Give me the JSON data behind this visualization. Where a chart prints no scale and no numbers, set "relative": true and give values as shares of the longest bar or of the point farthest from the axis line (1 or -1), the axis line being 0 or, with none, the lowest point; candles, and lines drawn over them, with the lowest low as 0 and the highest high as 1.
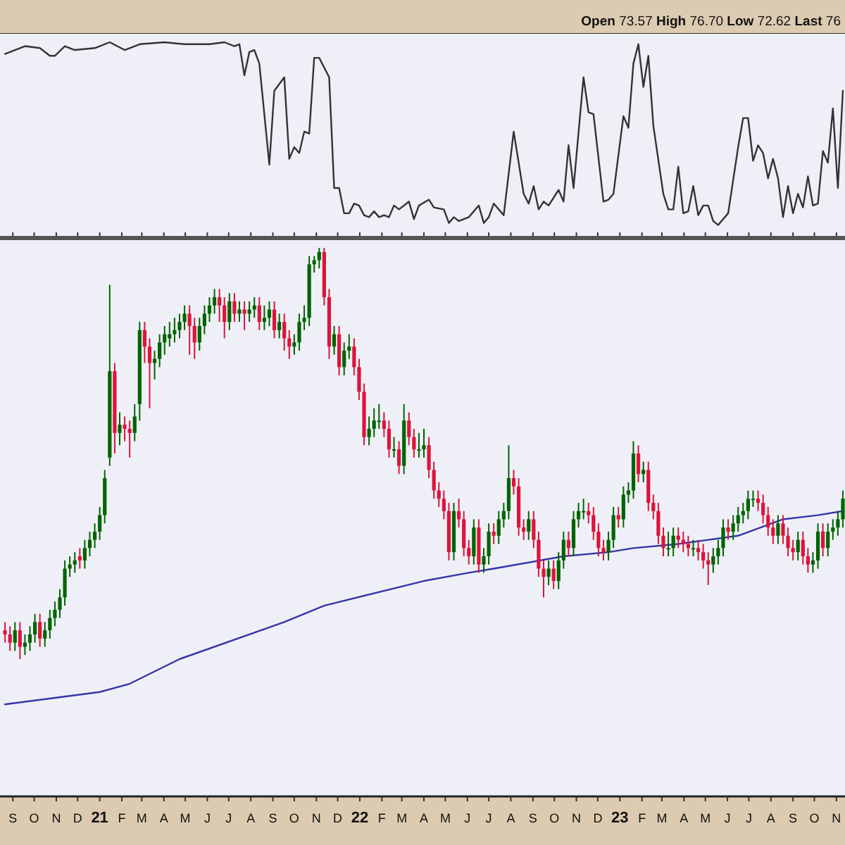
{
  "chart_data": [
    {
      "type": "line",
      "relative": true,
      "tick_labels": false,
      "xticks": [
        {
          "value": "2020-09",
          "label": null
        },
        {
          "value": "2020-10",
          "label": null
        },
        {
          "value": "2020-11",
          "label": null
        },
        {
          "value": "2020-12",
          "label": null
        },
        {
          "value": "2021-01",
          "label": null
        },
        {
          "value": "2021-02",
          "label": null
        },
        {
          "value": "2021-03",
          "label": null
        },
        {
          "value": "2021-04",
          "label": null
        },
        {
          "value": "2021-05",
          "label": null
        },
        {
          "value": "2021-06",
          "label": null
        },
        {
          "value": "2021-07",
          "label": null
        },
        {
          "value": "2021-08",
          "label": null
        },
        {
          "value": "2021-09",
          "label": null
        },
        {
          "value": "2021-10",
          "label": null
        },
        {
          "value": "2021-11",
          "label": null
        },
        {
          "value": "2021-12",
          "label": null
        },
        {
          "value": "2022-01",
          "label": null
        },
        {
          "value": "2022-02",
          "label": null
        },
        {
          "value": "2022-03",
          "label": null
        },
        {
          "value": "2022-04",
          "label": null
        },
        {
          "value": "2022-05",
          "label": null
        },
        {
          "value": "2022-06",
          "label": null
        },
        {
          "value": "2022-07",
          "label": null
        },
        {
          "value": "2022-08",
          "label": null
        },
        {
          "value": "2022-09",
          "label": null
        },
        {
          "value": "2022-10",
          "label": null
        },
        {
          "value": "2022-11",
          "label": null
        },
        {
          "value": "2022-12",
          "label": null
        },
        {
          "value": "2023-01",
          "label": null
        },
        {
          "value": "2023-02",
          "label": null
        },
        {
          "value": "2023-03",
          "label": null
        },
        {
          "value": "2023-04",
          "label": null
        },
        {
          "value": "2023-05",
          "label": null
        },
        {
          "value": "2023-06",
          "label": null
        },
        {
          "value": "2023-07",
          "label": null
        },
        {
          "value": "2023-08",
          "label": null
        },
        {
          "value": "2023-09",
          "label": null
        },
        {
          "value": "2023-10",
          "label": null
        },
        {
          "value": "2023-11",
          "label": null
        }
      ],
      "annotations": [
        "Open 73.57 High 76.70 Low 72.62 Last 76"
      ],
      "xlim": [
        "2020-08-14",
        "2023-11-13"
      ],
      "series": [
        {
          "color": "#333333",
          "x": [
            "2020-08-21",
            "2020-09-04",
            "2020-09-18",
            "2020-10-09",
            "2020-10-23",
            "2020-10-30",
            "2020-11-13",
            "2020-11-27",
            "2020-12-25",
            "2021-01-15",
            "2021-02-05",
            "2021-02-26",
            "2021-04-02",
            "2021-04-30",
            "2021-05-21",
            "2021-06-04",
            "2021-06-25",
            "2021-07-09",
            "2021-07-16",
            "2021-07-23",
            "2021-07-30",
            "2021-08-06",
            "2021-08-13",
            "2021-08-27",
            "2021-09-03",
            "2021-09-17",
            "2021-09-24",
            "2021-10-01",
            "2021-10-08",
            "2021-10-15",
            "2021-10-22",
            "2021-10-29",
            "2021-11-05",
            "2021-11-19",
            "2021-11-26",
            "2021-12-03",
            "2021-12-10",
            "2021-12-17",
            "2021-12-24",
            "2021-12-31",
            "2022-01-07",
            "2022-01-14",
            "2022-01-21",
            "2022-01-28",
            "2022-02-04",
            "2022-02-11",
            "2022-02-18",
            "2022-02-25",
            "2022-03-11",
            "2022-03-18",
            "2022-03-25",
            "2022-04-08",
            "2022-04-15",
            "2022-04-29",
            "2022-05-06",
            "2022-05-13",
            "2022-05-20",
            "2022-06-03",
            "2022-06-17",
            "2022-06-24",
            "2022-07-01",
            "2022-07-08",
            "2022-07-22",
            "2022-08-05",
            "2022-08-12",
            "2022-08-19",
            "2022-08-26",
            "2022-09-02",
            "2022-09-09",
            "2022-09-16",
            "2022-09-23",
            "2022-10-07",
            "2022-10-14",
            "2022-10-21",
            "2022-10-28",
            "2022-11-11",
            "2022-11-18",
            "2022-11-25",
            "2022-12-09",
            "2022-12-16",
            "2022-12-23",
            "2023-01-06",
            "2023-01-13",
            "2023-01-20",
            "2023-01-27",
            "2023-02-03",
            "2023-02-10",
            "2023-02-17",
            "2023-03-03",
            "2023-03-10",
            "2023-03-17",
            "2023-03-24",
            "2023-03-31",
            "2023-04-07",
            "2023-04-14",
            "2023-04-21",
            "2023-04-28",
            "2023-05-05",
            "2023-05-12",
            "2023-05-19",
            "2023-06-02",
            "2023-06-16",
            "2023-06-23",
            "2023-06-30",
            "2023-07-07",
            "2023-07-14",
            "2023-07-21",
            "2023-07-28",
            "2023-08-04",
            "2023-08-11",
            "2023-08-18",
            "2023-08-25",
            "2023-09-01",
            "2023-09-08",
            "2023-09-15",
            "2023-09-22",
            "2023-09-29",
            "2023-10-06",
            "2023-10-13",
            "2023-10-20",
            "2023-10-27",
            "2023-11-03",
            "2023-11-10"
          ],
          "values": [
            0.94,
            0.96,
            0.98,
            0.97,
            0.93,
            0.93,
            0.98,
            0.96,
            0.97,
            1.0,
            0.96,
            0.99,
            1.0,
            0.99,
            0.99,
            0.99,
            1.0,
            0.98,
            0.99,
            0.83,
            0.95,
            0.96,
            0.89,
            0.37,
            0.75,
            0.82,
            0.4,
            0.46,
            0.43,
            0.54,
            0.53,
            0.92,
            0.92,
            0.82,
            0.25,
            0.25,
            0.12,
            0.12,
            0.17,
            0.16,
            0.11,
            0.1,
            0.13,
            0.1,
            0.11,
            0.1,
            0.16,
            0.14,
            0.18,
            0.09,
            0.16,
            0.19,
            0.15,
            0.14,
            0.07,
            0.1,
            0.08,
            0.1,
            0.16,
            0.07,
            0.1,
            0.17,
            0.11,
            0.54,
            0.38,
            0.22,
            0.17,
            0.26,
            0.14,
            0.18,
            0.16,
            0.24,
            0.18,
            0.47,
            0.25,
            0.82,
            0.64,
            0.63,
            0.18,
            0.19,
            0.22,
            0.62,
            0.56,
            0.89,
            0.99,
            0.77,
            0.93,
            0.57,
            0.22,
            0.14,
            0.14,
            0.36,
            0.12,
            0.13,
            0.26,
            0.11,
            0.16,
            0.16,
            0.08,
            0.06,
            0.12,
            0.46,
            0.61,
            0.61,
            0.39,
            0.47,
            0.43,
            0.3,
            0.4,
            0.3,
            0.1,
            0.26,
            0.12,
            0.22,
            0.15,
            0.31,
            0.16,
            0.17,
            0.44,
            0.38,
            0.66,
            0.25,
            0.75
          ]
        }
      ]
    },
    {
      "type": "candlestick",
      "relative": true,
      "colors": [
        "#dc143c",
        "#dc143c",
        "#006400",
        "#dc143c",
        "#006400",
        "#006400",
        "#006400",
        "#dc143c",
        "#006400",
        "#006400",
        "#006400",
        "#006400",
        "#006400",
        "#006400",
        "#006400",
        "#dc143c",
        "#006400",
        "#006400",
        "#006400",
        "#006400",
        "#006400",
        "#006400",
        "#dc143c",
        "#006400",
        "#dc143c",
        "#dc143c",
        "#006400",
        "#006400",
        "#dc143c",
        "#dc143c",
        "#006400",
        "#006400",
        "#006400",
        "#006400",
        "#006400",
        "#006400",
        "#006400",
        "#dc143c",
        "#dc143c",
        "#006400",
        "#006400",
        "#006400",
        "#006400",
        "#dc143c",
        "#dc143c",
        "#006400",
        "#dc143c",
        "#006400",
        "#dc143c",
        "#006400",
        "#006400",
        "#dc143c",
        "#006400",
        "#006400",
        "#dc143c",
        "#006400",
        "#dc143c",
        "#dc143c",
        "#006400",
        "#006400",
        "#006400",
        "#006400",
        "#006400",
        "#006400",
        "#dc143c",
        "#dc143c",
        "#006400",
        "#dc143c",
        "#006400",
        "#006400",
        "#dc143c",
        "#dc143c",
        "#dc143c",
        "#006400",
        "#006400",
        "#006400",
        "#dc143c",
        "#dc143c",
        "#006400",
        "#dc143c",
        "#006400",
        "#dc143c",
        "#dc143c",
        "#006400",
        "#006400",
        "#dc143c",
        "#dc143c",
        "#dc143c",
        "#dc143c",
        "#dc143c",
        "#006400",
        "#dc143c",
        "#dc143c",
        "#dc143c",
        "#006400",
        "#dc143c",
        "#006400",
        "#006400",
        "#dc143c",
        "#006400",
        "#006400",
        "#006400",
        "#dc143c",
        "#dc143c",
        "#dc143c",
        "#006400",
        "#dc143c",
        "#dc143c",
        "#dc143c",
        "#006400",
        "#dc143c",
        "#006400",
        "#006400",
        "#dc143c",
        "#006400",
        "#006400",
        "#006400",
        "#dc143c",
        "#dc143c",
        "#dc143c",
        "#dc143c",
        "#006400",
        "#006400",
        "#dc143c",
        "#006400",
        "#006400",
        "#006400",
        "#dc143c",
        "#006400",
        "#dc143c",
        "#dc143c",
        "#dc143c",
        "#dc143c",
        "#006400",
        "#006400",
        "#dc143c",
        "#dc143c",
        "#dc143c",
        "#006400",
        "#dc143c",
        "#dc143c",
        "#dc143c",
        "#006400",
        "#006400",
        "#006400",
        "#dc143c",
        "#006400",
        "#006400",
        "#006400",
        "#006400",
        "#006400",
        "#dc143c",
        "#dc143c",
        "#dc143c",
        "#dc143c",
        "#006400",
        "#dc143c",
        "#dc143c",
        "#dc143c",
        "#006400",
        "#dc143c",
        "#dc143c",
        "#006400",
        "#006400",
        "#dc143c",
        "#006400",
        "#006400",
        "#006400",
        "#006400"
      ],
      "xlim": [
        "2020-08-14",
        "2023-11-13"
      ],
      "xticks": [
        {
          "value": "2020-09",
          "label": "S"
        },
        {
          "value": "2020-10",
          "label": "O"
        },
        {
          "value": "2020-11",
          "label": "N"
        },
        {
          "value": "2020-12",
          "label": "D"
        },
        {
          "value": "2021-01",
          "label": "21"
        },
        {
          "value": "2021-02",
          "label": "F"
        },
        {
          "value": "2021-03",
          "label": "M"
        },
        {
          "value": "2021-04",
          "label": "A"
        },
        {
          "value": "2021-05",
          "label": "M"
        },
        {
          "value": "2021-06",
          "label": "J"
        },
        {
          "value": "2021-07",
          "label": "J"
        },
        {
          "value": "2021-08",
          "label": "A"
        },
        {
          "value": "2021-09",
          "label": "S"
        },
        {
          "value": "2021-10",
          "label": "O"
        },
        {
          "value": "2021-11",
          "label": "N"
        },
        {
          "value": "2021-12",
          "label": "D"
        },
        {
          "value": "2022-01",
          "label": "22"
        },
        {
          "value": "2022-02",
          "label": "F"
        },
        {
          "value": "2022-03",
          "label": "M"
        },
        {
          "value": "2022-04",
          "label": "A"
        },
        {
          "value": "2022-05",
          "label": "M"
        },
        {
          "value": "2022-06",
          "label": "J"
        },
        {
          "value": "2022-07",
          "label": "J"
        },
        {
          "value": "2022-08",
          "label": "A"
        },
        {
          "value": "2022-09",
          "label": "S"
        },
        {
          "value": "2022-10",
          "label": "O"
        },
        {
          "value": "2022-11",
          "label": "N"
        },
        {
          "value": "2022-12",
          "label": "D"
        },
        {
          "value": "2023-01",
          "label": "23"
        },
        {
          "value": "2023-02",
          "label": "F"
        },
        {
          "value": "2023-03",
          "label": "M"
        },
        {
          "value": "2023-04",
          "label": "A"
        },
        {
          "value": "2023-05",
          "label": "M"
        },
        {
          "value": "2023-06",
          "label": "J"
        },
        {
          "value": "2023-07",
          "label": "J"
        },
        {
          "value": "2023-08",
          "label": "A"
        },
        {
          "value": "2023-09",
          "label": "S"
        },
        {
          "value": "2023-10",
          "label": "O"
        },
        {
          "value": "2023-11",
          "label": "N"
        }
      ],
      "x": [
        "2020-08-21",
        "2020-08-28",
        "2020-09-04",
        "2020-09-11",
        "2020-09-18",
        "2020-09-25",
        "2020-10-02",
        "2020-10-09",
        "2020-10-16",
        "2020-10-23",
        "2020-10-30",
        "2020-11-06",
        "2020-11-13",
        "2020-11-20",
        "2020-11-27",
        "2020-12-04",
        "2020-12-11",
        "2020-12-18",
        "2020-12-25",
        "2021-01-01",
        "2021-01-08",
        "2021-01-15",
        "2021-01-22",
        "2021-01-29",
        "2021-02-05",
        "2021-02-12",
        "2021-02-19",
        "2021-02-26",
        "2021-03-05",
        "2021-03-12",
        "2021-03-19",
        "2021-03-26",
        "2021-04-02",
        "2021-04-09",
        "2021-04-16",
        "2021-04-23",
        "2021-04-30",
        "2021-05-07",
        "2021-05-14",
        "2021-05-21",
        "2021-05-28",
        "2021-06-04",
        "2021-06-11",
        "2021-06-18",
        "2021-06-25",
        "2021-07-02",
        "2021-07-09",
        "2021-07-16",
        "2021-07-23",
        "2021-07-30",
        "2021-08-06",
        "2021-08-13",
        "2021-08-20",
        "2021-08-27",
        "2021-09-03",
        "2021-09-10",
        "2021-09-17",
        "2021-09-24",
        "2021-10-01",
        "2021-10-08",
        "2021-10-15",
        "2021-10-22",
        "2021-10-29",
        "2021-11-05",
        "2021-11-12",
        "2021-11-19",
        "2021-11-26",
        "2021-12-03",
        "2021-12-10",
        "2021-12-17",
        "2021-12-24",
        "2021-12-31",
        "2022-01-07",
        "2022-01-14",
        "2022-01-21",
        "2022-01-28",
        "2022-02-04",
        "2022-02-11",
        "2022-02-18",
        "2022-02-25",
        "2022-03-04",
        "2022-03-11",
        "2022-03-18",
        "2022-03-25",
        "2022-04-01",
        "2022-04-08",
        "2022-04-15",
        "2022-04-22",
        "2022-04-29",
        "2022-05-06",
        "2022-05-13",
        "2022-05-20",
        "2022-05-27",
        "2022-06-03",
        "2022-06-10",
        "2022-06-17",
        "2022-06-24",
        "2022-07-01",
        "2022-07-08",
        "2022-07-15",
        "2022-07-22",
        "2022-07-29",
        "2022-08-05",
        "2022-08-12",
        "2022-08-19",
        "2022-08-26",
        "2022-09-02",
        "2022-09-09",
        "2022-09-16",
        "2022-09-23",
        "2022-09-30",
        "2022-10-07",
        "2022-10-14",
        "2022-10-21",
        "2022-10-28",
        "2022-11-04",
        "2022-11-11",
        "2022-11-18",
        "2022-11-25",
        "2022-12-02",
        "2022-12-09",
        "2022-12-16",
        "2022-12-23",
        "2022-12-30",
        "2023-01-06",
        "2023-01-13",
        "2023-01-20",
        "2023-01-27",
        "2023-02-03",
        "2023-02-10",
        "2023-02-17",
        "2023-02-24",
        "2023-03-03",
        "2023-03-10",
        "2023-03-17",
        "2023-03-24",
        "2023-03-31",
        "2023-04-07",
        "2023-04-14",
        "2023-04-21",
        "2023-04-28",
        "2023-05-05",
        "2023-05-12",
        "2023-05-19",
        "2023-05-26",
        "2023-06-02",
        "2023-06-09",
        "2023-06-16",
        "2023-06-23",
        "2023-06-30",
        "2023-07-07",
        "2023-07-14",
        "2023-07-21",
        "2023-07-28",
        "2023-08-04",
        "2023-08-11",
        "2023-08-18",
        "2023-08-25",
        "2023-09-01",
        "2023-09-08",
        "2023-09-15",
        "2023-09-22",
        "2023-09-29",
        "2023-10-06",
        "2023-10-13",
        "2023-10-20",
        "2023-10-27",
        "2023-11-03",
        "2023-11-10"
      ],
      "ohlc": [
        [
          0.07,
          0.09,
          0.04,
          0.06
        ],
        [
          0.06,
          0.08,
          0.02,
          0.04
        ],
        [
          0.04,
          0.09,
          0.02,
          0.07
        ],
        [
          0.07,
          0.09,
          0.0,
          0.03
        ],
        [
          0.03,
          0.06,
          0.01,
          0.04
        ],
        [
          0.04,
          0.08,
          0.02,
          0.06
        ],
        [
          0.06,
          0.11,
          0.04,
          0.09
        ],
        [
          0.09,
          0.11,
          0.03,
          0.05
        ],
        [
          0.05,
          0.09,
          0.03,
          0.07
        ],
        [
          0.07,
          0.12,
          0.05,
          0.1
        ],
        [
          0.1,
          0.14,
          0.08,
          0.12
        ],
        [
          0.12,
          0.17,
          0.1,
          0.15
        ],
        [
          0.15,
          0.24,
          0.13,
          0.22
        ],
        [
          0.22,
          0.25,
          0.2,
          0.23
        ],
        [
          0.23,
          0.26,
          0.21,
          0.24
        ],
        [
          0.25,
          0.27,
          0.22,
          0.24
        ],
        [
          0.24,
          0.29,
          0.22,
          0.27
        ],
        [
          0.27,
          0.31,
          0.25,
          0.29
        ],
        [
          0.29,
          0.33,
          0.27,
          0.31
        ],
        [
          0.31,
          0.37,
          0.29,
          0.35
        ],
        [
          0.35,
          0.46,
          0.33,
          0.44
        ],
        [
          0.49,
          0.91,
          0.47,
          0.7
        ],
        [
          0.7,
          0.72,
          0.5,
          0.55
        ],
        [
          0.55,
          0.6,
          0.52,
          0.57
        ],
        [
          0.57,
          0.59,
          0.53,
          0.56
        ],
        [
          0.56,
          0.58,
          0.49,
          0.55
        ],
        [
          0.55,
          0.62,
          0.53,
          0.59
        ],
        [
          0.62,
          0.82,
          0.58,
          0.8
        ],
        [
          0.8,
          0.82,
          0.72,
          0.76
        ],
        [
          0.76,
          0.78,
          0.61,
          0.72
        ],
        [
          0.72,
          0.75,
          0.68,
          0.73
        ],
        [
          0.73,
          0.79,
          0.71,
          0.77
        ],
        [
          0.77,
          0.81,
          0.74,
          0.79
        ],
        [
          0.78,
          0.82,
          0.76,
          0.79
        ],
        [
          0.79,
          0.83,
          0.77,
          0.8
        ],
        [
          0.8,
          0.84,
          0.78,
          0.82
        ],
        [
          0.82,
          0.86,
          0.8,
          0.84
        ],
        [
          0.84,
          0.86,
          0.74,
          0.81
        ],
        [
          0.81,
          0.83,
          0.73,
          0.77
        ],
        [
          0.77,
          0.83,
          0.75,
          0.81
        ],
        [
          0.81,
          0.86,
          0.79,
          0.84
        ],
        [
          0.84,
          0.88,
          0.82,
          0.86
        ],
        [
          0.86,
          0.9,
          0.84,
          0.88
        ],
        [
          0.88,
          0.9,
          0.82,
          0.86
        ],
        [
          0.86,
          0.88,
          0.78,
          0.82
        ],
        [
          0.82,
          0.89,
          0.8,
          0.87
        ],
        [
          0.87,
          0.89,
          0.82,
          0.84
        ],
        [
          0.84,
          0.87,
          0.82,
          0.85
        ],
        [
          0.85,
          0.87,
          0.8,
          0.84
        ],
        [
          0.84,
          0.87,
          0.82,
          0.85
        ],
        [
          0.85,
          0.88,
          0.83,
          0.86
        ],
        [
          0.86,
          0.88,
          0.8,
          0.82
        ],
        [
          0.82,
          0.86,
          0.8,
          0.83
        ],
        [
          0.83,
          0.87,
          0.81,
          0.85
        ],
        [
          0.85,
          0.87,
          0.78,
          0.8
        ],
        [
          0.8,
          0.84,
          0.78,
          0.82
        ],
        [
          0.82,
          0.84,
          0.75,
          0.78
        ],
        [
          0.78,
          0.8,
          0.73,
          0.76
        ],
        [
          0.76,
          0.79,
          0.74,
          0.77
        ],
        [
          0.77,
          0.84,
          0.75,
          0.82
        ],
        [
          0.82,
          0.86,
          0.8,
          0.83
        ],
        [
          0.83,
          0.98,
          0.81,
          0.96
        ],
        [
          0.96,
          0.98,
          0.94,
          0.97
        ],
        [
          0.97,
          1.0,
          0.95,
          0.99
        ],
        [
          0.99,
          1.0,
          0.86,
          0.88
        ],
        [
          0.88,
          0.9,
          0.73,
          0.76
        ],
        [
          0.76,
          0.81,
          0.74,
          0.79
        ],
        [
          0.79,
          0.81,
          0.69,
          0.71
        ],
        [
          0.71,
          0.77,
          0.69,
          0.75
        ],
        [
          0.75,
          0.79,
          0.73,
          0.76
        ],
        [
          0.76,
          0.78,
          0.69,
          0.71
        ],
        [
          0.71,
          0.73,
          0.63,
          0.65
        ],
        [
          0.65,
          0.67,
          0.52,
          0.54
        ],
        [
          0.54,
          0.59,
          0.52,
          0.56
        ],
        [
          0.56,
          0.61,
          0.54,
          0.58
        ],
        [
          0.58,
          0.62,
          0.56,
          0.58
        ],
        [
          0.58,
          0.6,
          0.54,
          0.56
        ],
        [
          0.56,
          0.58,
          0.49,
          0.51
        ],
        [
          0.51,
          0.54,
          0.49,
          0.51
        ],
        [
          0.51,
          0.53,
          0.45,
          0.47
        ],
        [
          0.47,
          0.62,
          0.45,
          0.58
        ],
        [
          0.58,
          0.6,
          0.52,
          0.54
        ],
        [
          0.54,
          0.56,
          0.49,
          0.51
        ],
        [
          0.51,
          0.55,
          0.49,
          0.51
        ],
        [
          0.51,
          0.56,
          0.49,
          0.52
        ],
        [
          0.52,
          0.54,
          0.44,
          0.46
        ],
        [
          0.46,
          0.48,
          0.39,
          0.41
        ],
        [
          0.41,
          0.43,
          0.37,
          0.39
        ],
        [
          0.39,
          0.41,
          0.34,
          0.36
        ],
        [
          0.36,
          0.38,
          0.24,
          0.26
        ],
        [
          0.26,
          0.38,
          0.24,
          0.36
        ],
        [
          0.36,
          0.39,
          0.32,
          0.34
        ],
        [
          0.34,
          0.36,
          0.25,
          0.27
        ],
        [
          0.27,
          0.29,
          0.23,
          0.25
        ],
        [
          0.25,
          0.34,
          0.23,
          0.32
        ],
        [
          0.32,
          0.34,
          0.21,
          0.23
        ],
        [
          0.23,
          0.27,
          0.21,
          0.25
        ],
        [
          0.25,
          0.33,
          0.23,
          0.31
        ],
        [
          0.31,
          0.33,
          0.28,
          0.3
        ],
        [
          0.3,
          0.36,
          0.28,
          0.34
        ],
        [
          0.34,
          0.38,
          0.32,
          0.36
        ],
        [
          0.36,
          0.52,
          0.34,
          0.44
        ],
        [
          0.44,
          0.46,
          0.4,
          0.42
        ],
        [
          0.42,
          0.44,
          0.3,
          0.32
        ],
        [
          0.32,
          0.34,
          0.29,
          0.31
        ],
        [
          0.31,
          0.36,
          0.29,
          0.34
        ],
        [
          0.34,
          0.36,
          0.27,
          0.29
        ],
        [
          0.29,
          0.31,
          0.2,
          0.22
        ],
        [
          0.22,
          0.24,
          0.15,
          0.2
        ],
        [
          0.2,
          0.24,
          0.18,
          0.22
        ],
        [
          0.22,
          0.24,
          0.17,
          0.19
        ],
        [
          0.19,
          0.26,
          0.17,
          0.24
        ],
        [
          0.24,
          0.31,
          0.22,
          0.29
        ],
        [
          0.29,
          0.31,
          0.25,
          0.27
        ],
        [
          0.27,
          0.36,
          0.25,
          0.34
        ],
        [
          0.34,
          0.38,
          0.32,
          0.36
        ],
        [
          0.36,
          0.39,
          0.34,
          0.36
        ],
        [
          0.36,
          0.38,
          0.33,
          0.35
        ],
        [
          0.35,
          0.37,
          0.29,
          0.31
        ],
        [
          0.31,
          0.33,
          0.25,
          0.27
        ],
        [
          0.27,
          0.29,
          0.24,
          0.26
        ],
        [
          0.26,
          0.31,
          0.24,
          0.29
        ],
        [
          0.29,
          0.37,
          0.27,
          0.35
        ],
        [
          0.35,
          0.37,
          0.32,
          0.34
        ],
        [
          0.34,
          0.42,
          0.32,
          0.4
        ],
        [
          0.4,
          0.43,
          0.38,
          0.41
        ],
        [
          0.41,
          0.53,
          0.39,
          0.5
        ],
        [
          0.5,
          0.52,
          0.43,
          0.45
        ],
        [
          0.45,
          0.48,
          0.43,
          0.46
        ],
        [
          0.46,
          0.48,
          0.36,
          0.38
        ],
        [
          0.38,
          0.4,
          0.34,
          0.36
        ],
        [
          0.36,
          0.38,
          0.28,
          0.3
        ],
        [
          0.3,
          0.32,
          0.25,
          0.27
        ],
        [
          0.27,
          0.31,
          0.25,
          0.27
        ],
        [
          0.27,
          0.32,
          0.25,
          0.3
        ],
        [
          0.3,
          0.32,
          0.27,
          0.29
        ],
        [
          0.29,
          0.31,
          0.26,
          0.28
        ],
        [
          0.28,
          0.3,
          0.25,
          0.27
        ],
        [
          0.27,
          0.29,
          0.25,
          0.27
        ],
        [
          0.27,
          0.29,
          0.24,
          0.26
        ],
        [
          0.26,
          0.28,
          0.22,
          0.24
        ],
        [
          0.24,
          0.26,
          0.18,
          0.23
        ],
        [
          0.23,
          0.27,
          0.21,
          0.25
        ],
        [
          0.25,
          0.29,
          0.23,
          0.27
        ],
        [
          0.27,
          0.34,
          0.25,
          0.32
        ],
        [
          0.32,
          0.34,
          0.29,
          0.31
        ],
        [
          0.31,
          0.35,
          0.29,
          0.33
        ],
        [
          0.33,
          0.37,
          0.31,
          0.35
        ],
        [
          0.35,
          0.38,
          0.33,
          0.36
        ],
        [
          0.36,
          0.41,
          0.34,
          0.39
        ],
        [
          0.39,
          0.41,
          0.37,
          0.39
        ],
        [
          0.39,
          0.41,
          0.36,
          0.38
        ],
        [
          0.38,
          0.4,
          0.33,
          0.35
        ],
        [
          0.35,
          0.37,
          0.3,
          0.32
        ],
        [
          0.32,
          0.34,
          0.28,
          0.3
        ],
        [
          0.3,
          0.35,
          0.28,
          0.33
        ],
        [
          0.33,
          0.35,
          0.28,
          0.3
        ],
        [
          0.3,
          0.32,
          0.25,
          0.27
        ],
        [
          0.27,
          0.29,
          0.24,
          0.26
        ],
        [
          0.26,
          0.31,
          0.24,
          0.29
        ],
        [
          0.29,
          0.31,
          0.23,
          0.25
        ],
        [
          0.25,
          0.27,
          0.21,
          0.23
        ],
        [
          0.23,
          0.26,
          0.21,
          0.24
        ],
        [
          0.24,
          0.33,
          0.22,
          0.31
        ],
        [
          0.31,
          0.33,
          0.25,
          0.27
        ],
        [
          0.27,
          0.33,
          0.25,
          0.31
        ],
        [
          0.31,
          0.34,
          0.29,
          0.32
        ],
        [
          0.32,
          0.36,
          0.3,
          0.34
        ],
        [
          0.34,
          0.41,
          0.32,
          0.39
        ]
      ],
      "series": [
        {
          "type": "line",
          "color": "#3535a8",
          "x": [
            "2020-08-21",
            "2021-01-01",
            "2021-02-12",
            "2021-04-23",
            "2021-09-17",
            "2021-11-12",
            "2022-04-01",
            "2022-06-03",
            "2022-07-08",
            "2022-10-14",
            "2022-12-16",
            "2023-01-20",
            "2023-03-24",
            "2023-05-05",
            "2023-06-16",
            "2023-08-18",
            "2023-10-06",
            "2023-11-10"
          ],
          "values": [
            -0.11,
            -0.08,
            -0.06,
            0.0,
            0.09,
            0.13,
            0.19,
            0.21,
            0.22,
            0.25,
            0.26,
            0.27,
            0.28,
            0.29,
            0.3,
            0.34,
            0.35,
            0.36
          ]
        }
      ]
    }
  ]
}
